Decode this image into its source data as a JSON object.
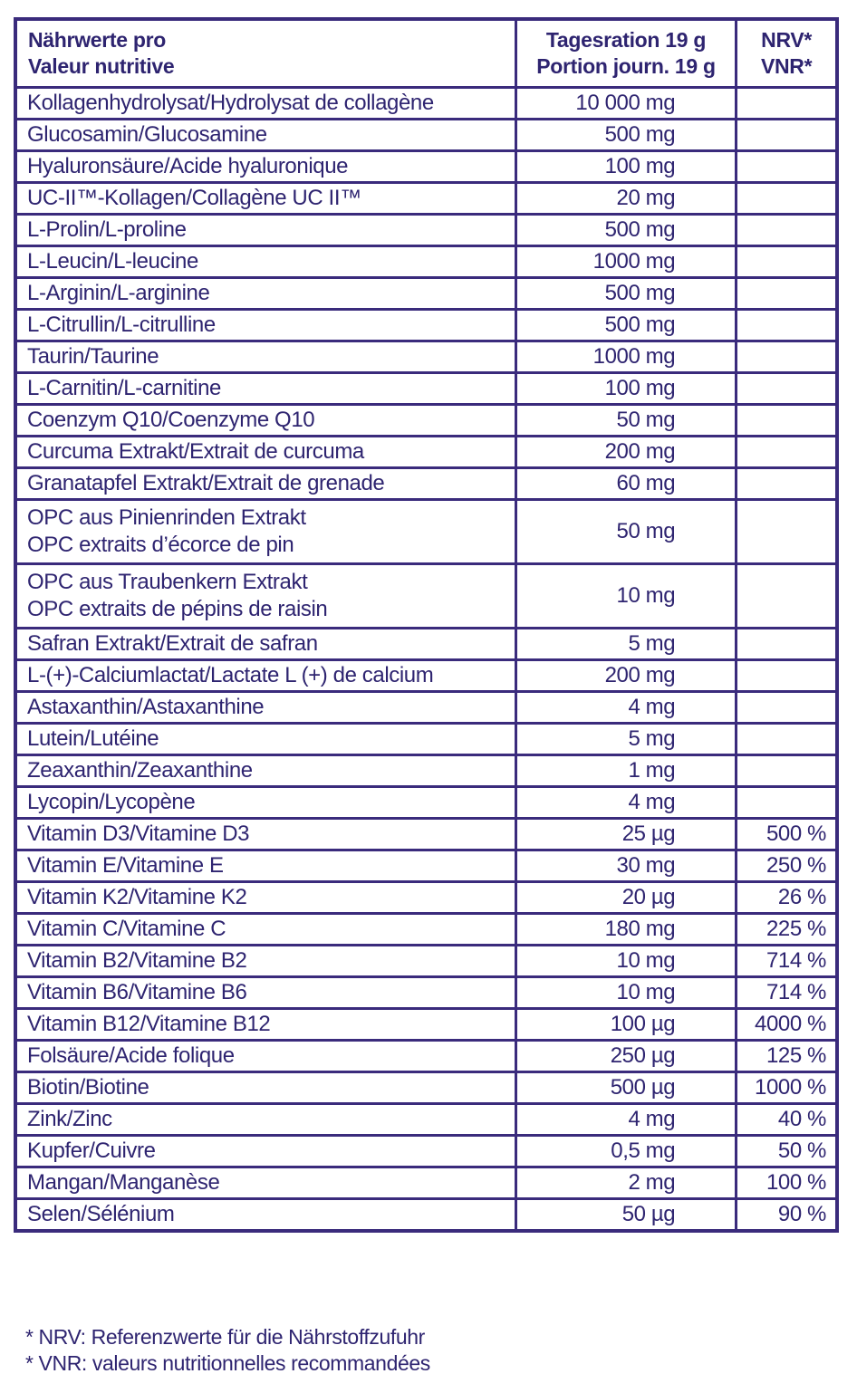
{
  "header": {
    "col1_line1": "Nährwerte pro",
    "col1_line2": "Valeur nutritive",
    "col2_line1": "Tagesration 19 g",
    "col2_line2": "Portion journ. 19 g",
    "col3_line1": "NRV*",
    "col3_line2": "VNR*"
  },
  "rows": [
    {
      "name": "Kollagenhydrolysat/Hydrolysat de collagène",
      "amount": "10 000 mg",
      "nrv": ""
    },
    {
      "name": "Glucosamin/Glucosamine",
      "amount": "500 mg",
      "nrv": ""
    },
    {
      "name": "Hyaluronsäure/Acide hyaluronique",
      "amount": "100 mg",
      "nrv": ""
    },
    {
      "name": "UC-II™-Kollagen/Collagène UC II™",
      "amount": "20 mg",
      "nrv": ""
    },
    {
      "name": "L-Prolin/L-proline",
      "amount": "500 mg",
      "nrv": ""
    },
    {
      "name": "L-Leucin/L-leucine",
      "amount": "1000 mg",
      "nrv": ""
    },
    {
      "name": "L-Arginin/L-arginine",
      "amount": "500 mg",
      "nrv": ""
    },
    {
      "name": "L-Citrullin/L-citrulline",
      "amount": "500 mg",
      "nrv": ""
    },
    {
      "name": "Taurin/Taurine",
      "amount": "1000 mg",
      "nrv": ""
    },
    {
      "name": "L-Carnitin/L-carnitine",
      "amount": "100 mg",
      "nrv": ""
    },
    {
      "name": "Coenzym Q10/Coenzyme Q10",
      "amount": "50 mg",
      "nrv": ""
    },
    {
      "name": "Curcuma Extrakt/Extrait de curcuma",
      "amount": "200 mg",
      "nrv": ""
    },
    {
      "name": "Granatapfel Extrakt/Extrait de grenade",
      "amount": "60 mg",
      "nrv": ""
    },
    {
      "name_line1": "OPC aus Pinienrinden Extrakt",
      "name_line2": "OPC extraits d’écorce de pin",
      "amount": "50 mg",
      "nrv": ""
    },
    {
      "name_line1": "OPC aus Traubenkern Extrakt",
      "name_line2": "OPC extraits de pépins de raisin",
      "amount": "10 mg",
      "nrv": ""
    },
    {
      "name": "Safran Extrakt/Extrait de safran",
      "amount": "5 mg",
      "nrv": ""
    },
    {
      "name": "L-(+)-Calciumlactat/Lactate L (+) de calcium",
      "amount": "200 mg",
      "nrv": ""
    },
    {
      "name": "Astaxanthin/Astaxanthine",
      "amount": "4 mg",
      "nrv": ""
    },
    {
      "name": "Lutein/Lutéine",
      "amount": "5 mg",
      "nrv": ""
    },
    {
      "name": "Zeaxanthin/Zeaxanthine",
      "amount": "1 mg",
      "nrv": ""
    },
    {
      "name": "Lycopin/Lycopène",
      "amount": "4 mg",
      "nrv": ""
    },
    {
      "name": "Vitamin D3/Vitamine D3",
      "amount": "25 µg",
      "nrv": "500 %"
    },
    {
      "name": "Vitamin E/Vitamine E",
      "amount": "30 mg",
      "nrv": "250 %"
    },
    {
      "name": "Vitamin K2/Vitamine K2",
      "amount": "20 µg",
      "nrv": "26 %"
    },
    {
      "name": "Vitamin C/Vitamine C",
      "amount": "180 mg",
      "nrv": "225 %"
    },
    {
      "name": "Vitamin B2/Vitamine B2",
      "amount": "10 mg",
      "nrv": "714 %"
    },
    {
      "name": "Vitamin B6/Vitamine B6",
      "amount": "10 mg",
      "nrv": "714 %"
    },
    {
      "name": "Vitamin B12/Vitamine B12",
      "amount": "100 µg",
      "nrv": "4000 %"
    },
    {
      "name": "Folsäure/Acide folique",
      "amount": "250 µg",
      "nrv": "125 %"
    },
    {
      "name": "Biotin/Biotine",
      "amount": "500 µg",
      "nrv": "1000 %"
    },
    {
      "name": "Zink/Zinc",
      "amount": "4 mg",
      "nrv": "40 %"
    },
    {
      "name": "Kupfer/Cuivre",
      "amount": "0,5 mg",
      "nrv": "50 %"
    },
    {
      "name": "Mangan/Manganèse",
      "amount": "2 mg",
      "nrv": "100 %"
    },
    {
      "name": "Selen/Sélénium",
      "amount": "50 µg",
      "nrv": "90 %"
    }
  ],
  "footnotes": {
    "line1": "* NRV: Referenzwerte für die Nährstoffzufuhr",
    "line2": "* VNR: valeurs nutritionnelles recommandées"
  },
  "colors": {
    "border": "#3a2b7c",
    "text": "#2e2470"
  }
}
